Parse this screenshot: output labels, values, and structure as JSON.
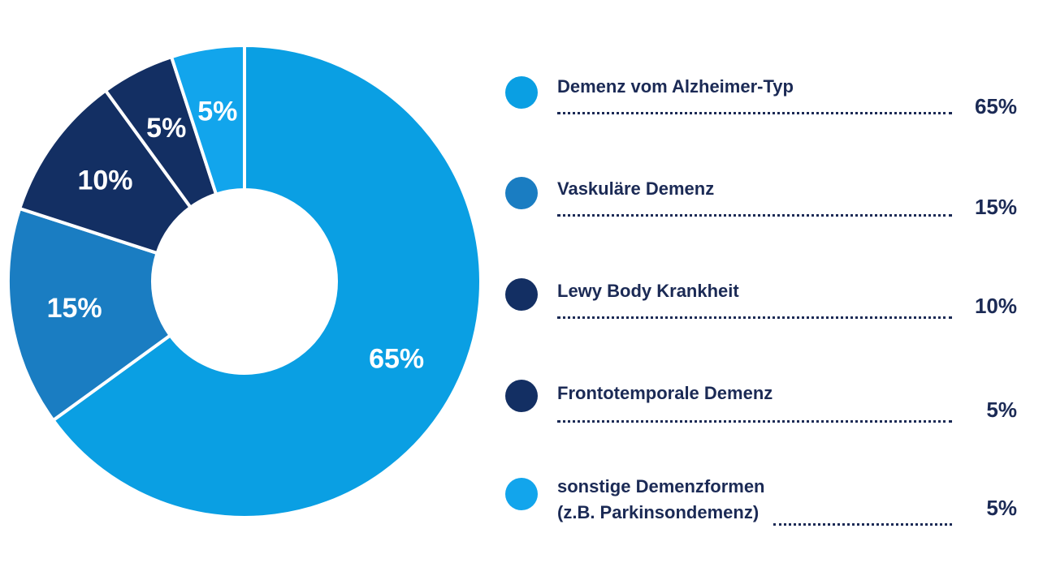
{
  "chart_data": {
    "type": "pie",
    "donut": true,
    "title": "",
    "categories": [
      "Demenz vom Alzheimer-Typ",
      "Vaskuläre Demenz",
      "Lewy Body Krankheit",
      "Frontotemporale Demenz",
      "sonstige Demenzformen (z.B. Parkinsondemenz)"
    ],
    "values": [
      65,
      15,
      10,
      5,
      5
    ],
    "value_labels": [
      "65%",
      "15%",
      "10%",
      "5%",
      "5%"
    ],
    "colors": [
      "#0a9fe3",
      "#1a7dc2",
      "#132f63",
      "#132f63",
      "#12a5ec"
    ],
    "legend_placement": "right"
  },
  "legend": {
    "items": [
      {
        "name": "Demenz vom Alzheimer-Typ",
        "name_line2": "",
        "value": "65%",
        "color": "#0a9fe3"
      },
      {
        "name": "Vaskuläre Demenz",
        "name_line2": "",
        "value": "15%",
        "color": "#1a7dc2"
      },
      {
        "name": "Lewy Body Krankheit",
        "name_line2": "",
        "value": "10%",
        "color": "#132f63"
      },
      {
        "name": "Frontotemporale Demenz",
        "name_line2": "",
        "value": "5%",
        "color": "#132f63"
      },
      {
        "name": "sonstige Demenzformen",
        "name_line2": "(z.B. Parkinsondemenz)",
        "value": "5%",
        "color": "#12a5ec"
      }
    ]
  }
}
